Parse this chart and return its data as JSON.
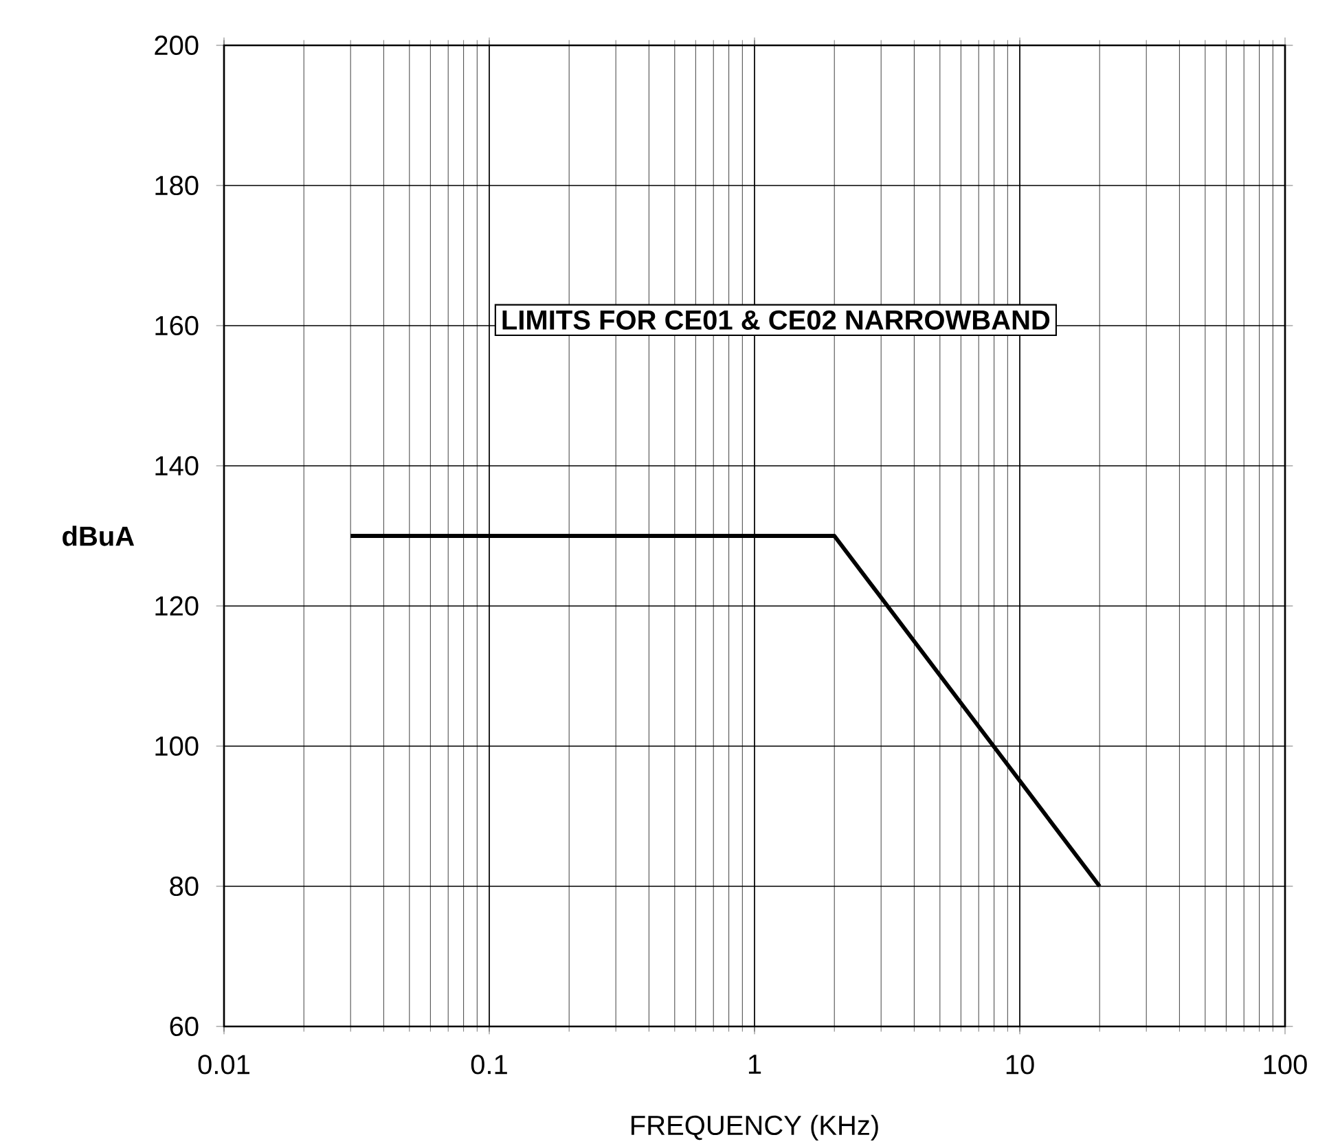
{
  "chart_data": {
    "type": "line",
    "title": "LIMITS FOR CE01 & CE02 NARROWBAND",
    "xlabel": "FREQUENCY (KHz)",
    "ylabel": "dBuA",
    "series": [
      {
        "color": "#000000",
        "x": [
          0.03,
          2,
          20
        ],
        "values": [
          130,
          130,
          80
        ]
      }
    ],
    "log": "x",
    "xlim": [
      0.01,
      100
    ],
    "xticks": [
      0.01,
      0.1,
      1,
      10,
      100
    ],
    "ylim": [
      60,
      200
    ],
    "yticks": [
      60,
      80,
      100,
      120,
      140,
      160,
      180,
      200
    ],
    "grid": true,
    "line_style": "solid"
  }
}
